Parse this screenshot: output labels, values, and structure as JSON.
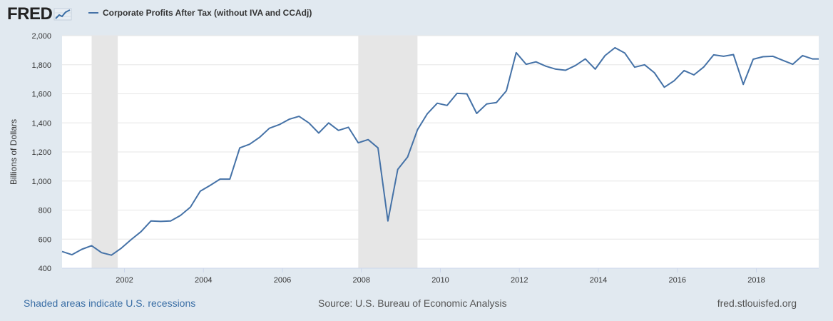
{
  "header": {
    "logo_text": "FRED",
    "logo_icon": "chart-line-icon",
    "legend_label": "Corporate Profits After Tax (without IVA and CCAdj)",
    "legend_color": "#4572a7"
  },
  "footer": {
    "recession_note": "Shaded areas indicate U.S. recessions",
    "source": "Source: U.S. Bureau of Economic Analysis",
    "site": "fred.stlouisfed.org"
  },
  "chart_data": {
    "type": "line",
    "title": "",
    "xlabel": "",
    "ylabel": "Billions of Dollars",
    "xlim": [
      2000.42,
      2019.58
    ],
    "ylim": [
      400,
      2000
    ],
    "y_ticks": [
      400,
      600,
      800,
      1000,
      1200,
      1400,
      1600,
      1800,
      2000
    ],
    "y_tick_labels": [
      "400",
      "600",
      "800",
      "1,000",
      "1,200",
      "1,400",
      "1,600",
      "1,800",
      "2,000"
    ],
    "x_ticks": [
      2002,
      2004,
      2006,
      2008,
      2010,
      2012,
      2014,
      2016,
      2018
    ],
    "x_tick_labels": [
      "2002",
      "2004",
      "2006",
      "2008",
      "2010",
      "2012",
      "2014",
      "2016",
      "2018"
    ],
    "grid": "horizontal",
    "recessions": [
      [
        2001.17,
        2001.83
      ],
      [
        2007.92,
        2009.42
      ]
    ],
    "recession_color": "#e6e6e6",
    "series": [
      {
        "color": "#4572a7",
        "x": [
          2000.42,
          2000.67,
          2000.92,
          2001.17,
          2001.42,
          2001.67,
          2001.92,
          2002.17,
          2002.42,
          2002.67,
          2002.92,
          2003.17,
          2003.42,
          2003.67,
          2003.92,
          2004.17,
          2004.42,
          2004.67,
          2004.92,
          2005.17,
          2005.42,
          2005.67,
          2005.92,
          2006.17,
          2006.42,
          2006.67,
          2006.92,
          2007.17,
          2007.42,
          2007.67,
          2007.92,
          2008.17,
          2008.42,
          2008.67,
          2008.92,
          2009.17,
          2009.42,
          2009.67,
          2009.92,
          2010.17,
          2010.42,
          2010.67,
          2010.92,
          2011.17,
          2011.42,
          2011.67,
          2011.92,
          2012.17,
          2012.42,
          2012.67,
          2012.92,
          2013.17,
          2013.42,
          2013.67,
          2013.92,
          2014.17,
          2014.42,
          2014.67,
          2014.92,
          2015.17,
          2015.42,
          2015.67,
          2015.92,
          2016.17,
          2016.42,
          2016.67,
          2016.92,
          2017.17,
          2017.42,
          2017.67,
          2017.92,
          2018.17,
          2018.42,
          2018.67,
          2018.92,
          2019.17,
          2019.42,
          2019.58
        ],
        "values": [
          515,
          493,
          530,
          555,
          507,
          490,
          538,
          597,
          652,
          725,
          722,
          725,
          763,
          820,
          930,
          970,
          1013,
          1013,
          1228,
          1253,
          1300,
          1363,
          1388,
          1425,
          1445,
          1400,
          1330,
          1400,
          1348,
          1370,
          1263,
          1285,
          1228,
          725,
          1080,
          1165,
          1353,
          1463,
          1535,
          1520,
          1603,
          1600,
          1465,
          1530,
          1540,
          1620,
          1883,
          1803,
          1820,
          1790,
          1770,
          1762,
          1795,
          1840,
          1770,
          1863,
          1917,
          1880,
          1783,
          1800,
          1745,
          1645,
          1690,
          1760,
          1730,
          1785,
          1868,
          1858,
          1870,
          1665,
          1838,
          1855,
          1858,
          1830,
          1803,
          1863,
          1840,
          1840
        ]
      }
    ]
  }
}
